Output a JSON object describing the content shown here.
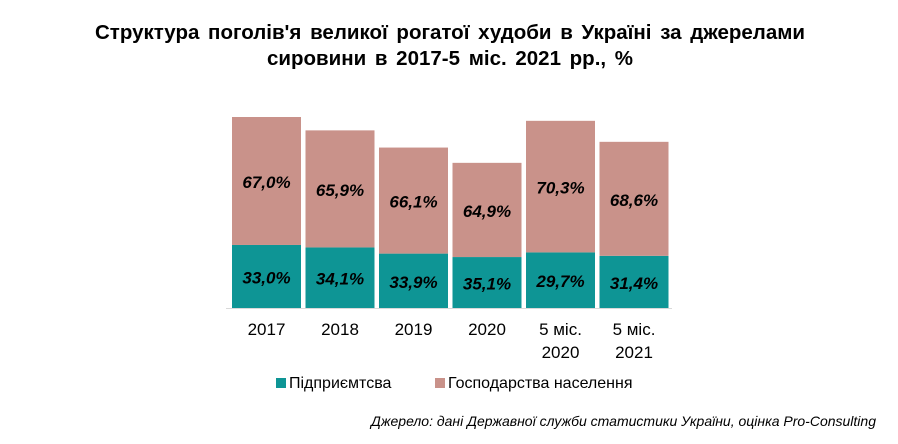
{
  "title": {
    "line1": "Структура поголів'я великої рогатої худоби в Україні за джерелами",
    "line2": "сировини в 2017-5 міс. 2021 рр., %"
  },
  "source": "Джерело: дані Державної служби статистики України, оцінка Pro-Consulting",
  "colors": {
    "enterprises": "#0E9595",
    "households": "#C9928A"
  },
  "chart_data": {
    "type": "bar",
    "stacked": true,
    "categories": [
      [
        "2017"
      ],
      [
        "2018"
      ],
      [
        "2019"
      ],
      [
        "2020"
      ],
      [
        "5 міс.",
        "2020"
      ],
      [
        "5 міс.",
        "2021"
      ]
    ],
    "totals_relative": [
      1.0,
      0.93,
      0.84,
      0.76,
      0.98,
      0.87
    ],
    "series": [
      {
        "name": "Підприємтсва",
        "values": [
          33.0,
          34.1,
          33.9,
          35.1,
          29.7,
          31.4
        ],
        "labels": [
          "33,0%",
          "34,1%",
          "33,9%",
          "35,1%",
          "29,7%",
          "31,4%"
        ],
        "color": "#0E9595"
      },
      {
        "name": "Господарства населення",
        "values": [
          67.0,
          65.9,
          66.1,
          64.9,
          70.3,
          68.6
        ],
        "labels": [
          "67,0%",
          "65,9%",
          "66,1%",
          "64,9%",
          "70,3%",
          "68,6%"
        ],
        "color": "#C9928A"
      }
    ],
    "legend_position": "bottom",
    "grid": false
  }
}
